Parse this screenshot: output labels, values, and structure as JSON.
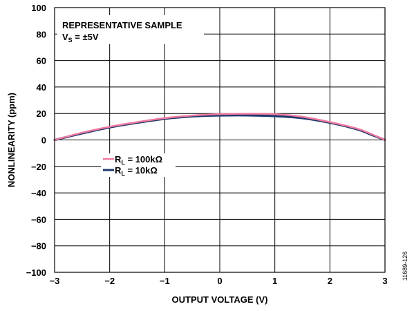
{
  "chart_data": {
    "type": "line",
    "xlabel": "OUTPUT VOLTAGE (V)",
    "ylabel": "NONLINEARITY (ppm)",
    "xlim": [
      -3,
      3
    ],
    "ylim": [
      -100,
      100
    ],
    "x_ticks": [
      "−3",
      "−2",
      "−1",
      "0",
      "1",
      "2",
      "3"
    ],
    "y_ticks": [
      "100",
      "80",
      "60",
      "40",
      "20",
      "0",
      "−20",
      "−40",
      "−60",
      "−80",
      "−100"
    ],
    "grid": true,
    "annotation_line1": "REPRESENTATIVE SAMPLE",
    "annotation_vs_main": "V",
    "annotation_vs_sub": "S",
    "annotation_vs_rest": " = ±5V",
    "figure_id": "11689-126",
    "series": [
      {
        "name_main": "R",
        "name_sub": "L",
        "name_rest": " = 100kΩ",
        "color": "#f07aa0",
        "x": [
          -3,
          -2.5,
          -2,
          -1.5,
          -1,
          -0.5,
          0,
          0.5,
          1,
          1.5,
          2,
          2.5,
          2.75,
          3
        ],
        "y": [
          0,
          5.5,
          10,
          13.5,
          16.5,
          18.5,
          19.5,
          19.8,
          19.5,
          17.5,
          13.5,
          8.5,
          4.5,
          0
        ]
      },
      {
        "name_main": "R",
        "name_sub": "L",
        "name_rest": " = 10kΩ",
        "color": "#1f3a6e",
        "x": [
          -3,
          -2.5,
          -2,
          -1.5,
          -1,
          -0.5,
          0,
          0.5,
          1,
          1.5,
          2,
          2.5,
          2.75,
          3
        ],
        "y": [
          0,
          5,
          9.5,
          13,
          16,
          17.8,
          18.5,
          18.6,
          18,
          16.5,
          13,
          8,
          4,
          0
        ]
      }
    ]
  }
}
